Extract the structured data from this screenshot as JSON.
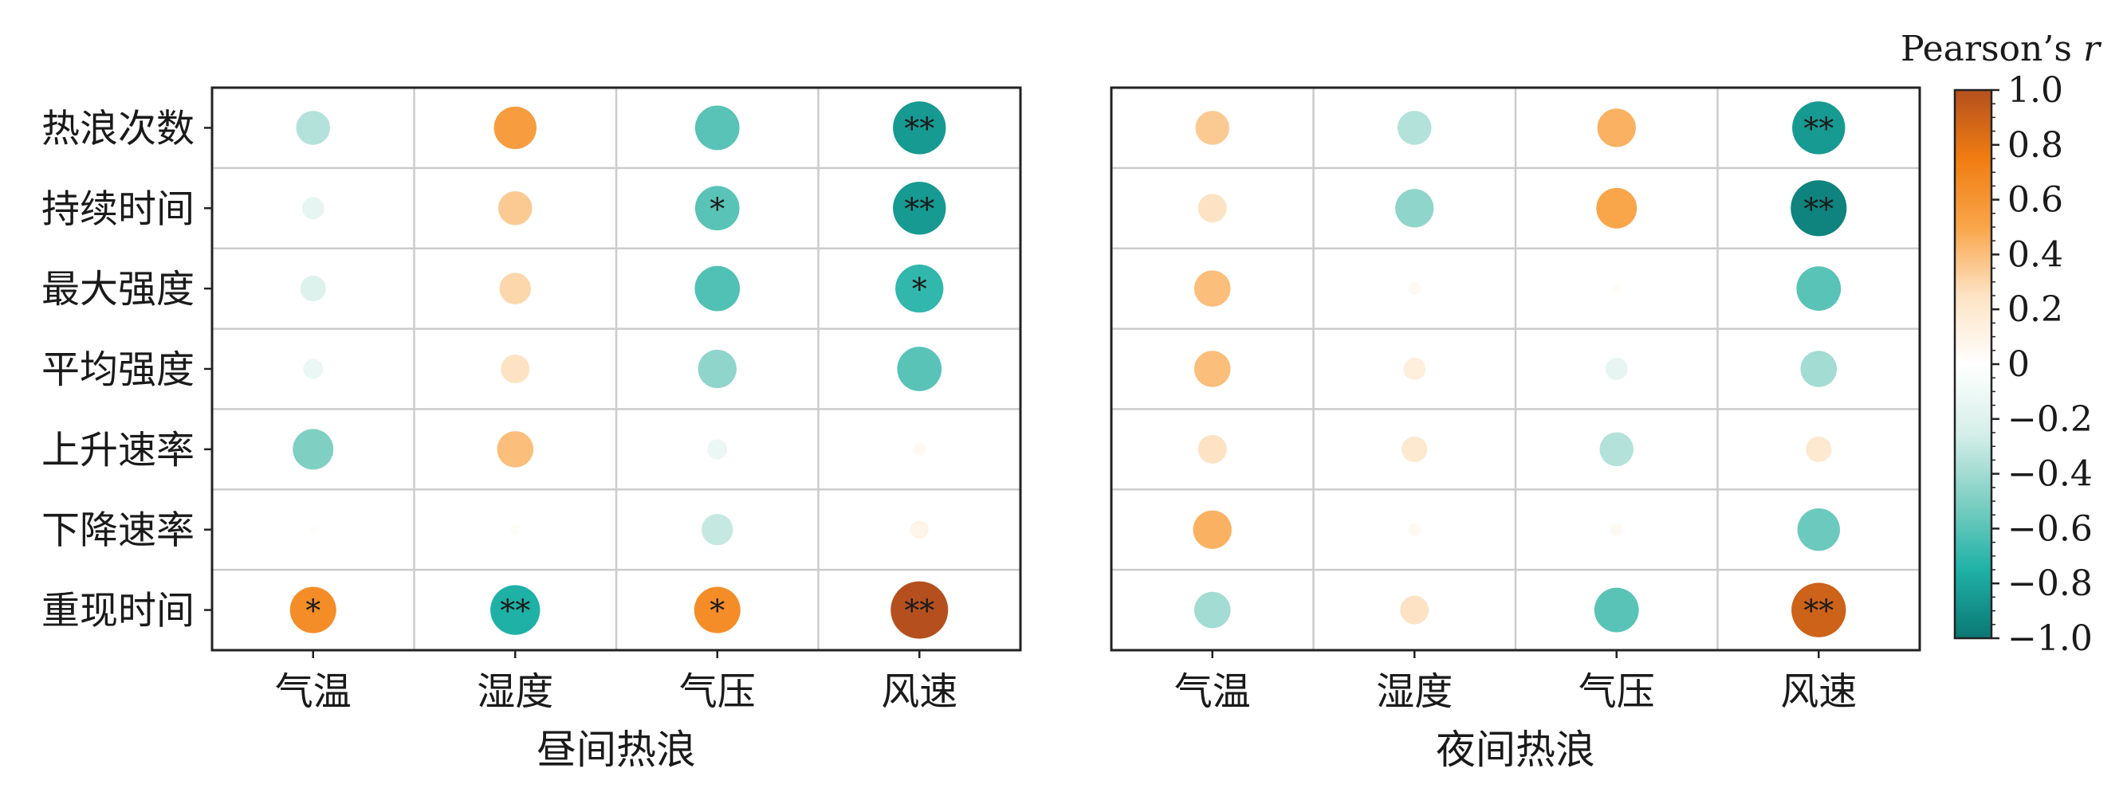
{
  "chart_data": {
    "type": "bubble-heatmap",
    "panels": [
      {
        "xlabel": "昼间热浪",
        "x_categories": [
          "气温",
          "湿度",
          "气压",
          "风速"
        ],
        "y_categories": [
          "热浪次数",
          "持续时间",
          "最大强度",
          "平均强度",
          "上升速率",
          "下降速率",
          "重现时间"
        ],
        "values": [
          [
            -0.35,
            0.55,
            -0.6,
            -0.85
          ],
          [
            -0.15,
            0.35,
            -0.6,
            -0.85
          ],
          [
            -0.2,
            0.3,
            -0.62,
            -0.7
          ],
          [
            -0.12,
            0.25,
            -0.45,
            -0.6
          ],
          [
            -0.5,
            0.4,
            -0.12,
            0.05
          ],
          [
            0.02,
            0.03,
            -0.3,
            0.1
          ],
          [
            0.65,
            -0.75,
            0.65,
            1.0
          ]
        ],
        "significance": [
          [
            "",
            "",
            "",
            "**"
          ],
          [
            "",
            "",
            "*",
            "**"
          ],
          [
            "",
            "",
            "",
            "*"
          ],
          [
            "",
            "",
            "",
            ""
          ],
          [
            "",
            "",
            "",
            ""
          ],
          [
            "",
            "",
            "",
            ""
          ],
          [
            "*",
            "**",
            "*",
            "**"
          ]
        ]
      },
      {
        "xlabel": "夜间热浪",
        "x_categories": [
          "气温",
          "湿度",
          "气压",
          "风速"
        ],
        "y_categories": [
          "热浪次数",
          "持续时间",
          "最大强度",
          "平均强度",
          "上升速率",
          "下降速率",
          "重现时间"
        ],
        "values": [
          [
            0.35,
            -0.35,
            0.45,
            -0.85
          ],
          [
            0.25,
            -0.45,
            0.5,
            -0.95
          ],
          [
            0.4,
            0.05,
            0.03,
            -0.6
          ],
          [
            0.4,
            0.15,
            -0.15,
            -0.4
          ],
          [
            0.25,
            0.2,
            -0.35,
            0.2
          ],
          [
            0.45,
            0.05,
            0.05,
            -0.55
          ],
          [
            -0.4,
            0.25,
            -0.6,
            0.9
          ]
        ],
        "significance": [
          [
            "",
            "",
            "",
            "**"
          ],
          [
            "",
            "",
            "",
            "**"
          ],
          [
            "",
            "",
            "",
            ""
          ],
          [
            "",
            "",
            "",
            ""
          ],
          [
            "",
            "",
            "",
            ""
          ],
          [
            "",
            "",
            "",
            ""
          ],
          [
            "",
            "",
            "",
            "**"
          ]
        ]
      }
    ],
    "colorbar": {
      "label": "Pearson’s r",
      "range": [
        -1.0,
        1.0
      ],
      "ticks": [
        "1.0",
        "0.8",
        "0.6",
        "0.4",
        "0.2",
        "0",
        "−0.2",
        "−0.4",
        "−0.6",
        "−0.8",
        "−1.0"
      ],
      "positive_color": "#b5501e",
      "mid_color": "#ffffff",
      "negative_color": "#0b7774"
    }
  }
}
